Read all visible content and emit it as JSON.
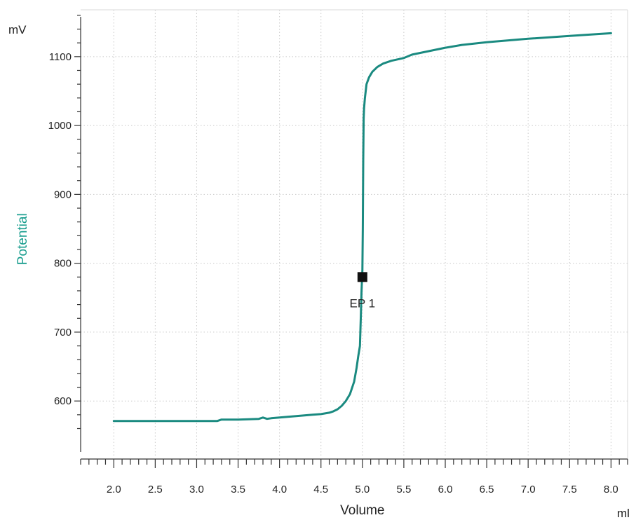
{
  "chart_data": {
    "type": "line",
    "xlabel": "Volume",
    "ylabel": "Potential",
    "x_unit": "ml",
    "y_unit": "mV",
    "xlim": [
      1.6,
      8.2
    ],
    "ylim": [
      531,
      1168
    ],
    "x_ticks": [
      2.0,
      2.5,
      3.0,
      3.5,
      4.0,
      4.5,
      5.0,
      5.5,
      6.0,
      6.5,
      7.0,
      7.5,
      8.0
    ],
    "x_tick_labels": [
      "2.0",
      "2.5",
      "3.0",
      "3.5",
      "4.0",
      "4.5",
      "5.0",
      "5.5",
      "6.0",
      "6.5",
      "7.0",
      "7.5",
      "8.0"
    ],
    "y_ticks": [
      600,
      700,
      800,
      900,
      1000,
      1100
    ],
    "y_tick_labels": [
      "600",
      "700",
      "800",
      "900",
      "1000",
      "1100"
    ],
    "grid": true,
    "line_color": "#1a8a80",
    "ylabel_color": "#1a9e8f",
    "series": [
      {
        "x": [
          2.0,
          2.5,
          3.0,
          3.25,
          3.3,
          3.5,
          3.75,
          3.8,
          3.85,
          3.9,
          4.0,
          4.2,
          4.4,
          4.5,
          4.6,
          4.65,
          4.7,
          4.75,
          4.8,
          4.85,
          4.9,
          4.93,
          4.95,
          4.97,
          4.98,
          4.99,
          5.0,
          5.005,
          5.01,
          5.015,
          5.02,
          5.03,
          5.05,
          5.08,
          5.12,
          5.18,
          5.25,
          5.35,
          5.5,
          5.6,
          5.8,
          6.0,
          6.2,
          6.5,
          7.0,
          7.5,
          8.0
        ],
        "y": [
          571,
          571,
          571,
          571,
          573,
          573,
          574,
          576,
          574,
          575,
          576,
          578,
          580,
          581,
          583,
          585,
          588,
          593,
          600,
          610,
          628,
          648,
          665,
          680,
          720,
          760,
          790,
          850,
          950,
          1010,
          1025,
          1040,
          1060,
          1070,
          1078,
          1085,
          1090,
          1094,
          1098,
          1103,
          1108,
          1113,
          1117,
          1121,
          1126,
          1130,
          1134
        ]
      }
    ],
    "markers": [
      {
        "x": 5.0,
        "y": 780,
        "label": "EP 1",
        "shape": "square"
      }
    ]
  }
}
